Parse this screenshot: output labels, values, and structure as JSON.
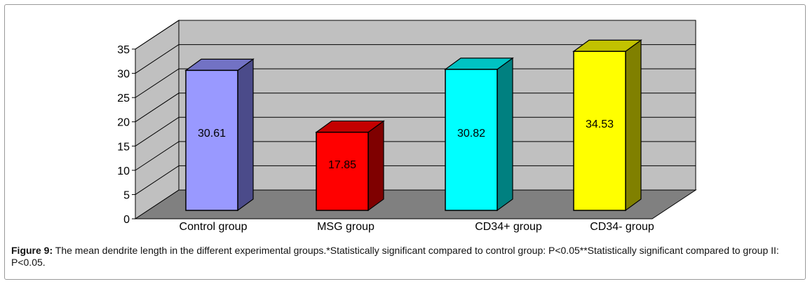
{
  "chart_data": {
    "type": "bar",
    "categories": [
      "Control group",
      "MSG group",
      "CD34+ group",
      "CD34- group"
    ],
    "values": [
      30.61,
      17.85,
      30.82,
      34.53
    ],
    "value_labels": [
      "30.61",
      "17.85",
      "30.82",
      "34.53"
    ],
    "yticks": [
      "0",
      "5",
      "10",
      "15",
      "20",
      "25",
      "30",
      "35"
    ],
    "ylim": [
      0,
      35
    ],
    "grid": true,
    "title": "",
    "xlabel": "",
    "ylabel": "",
    "colors": [
      {
        "front": "#9999ff",
        "side": "#4b4b8a",
        "top": "#7272c4"
      },
      {
        "front": "#ff0000",
        "side": "#7f0000",
        "top": "#c40000"
      },
      {
        "front": "#00ffff",
        "side": "#008080",
        "top": "#00c2c2"
      },
      {
        "front": "#ffff00",
        "side": "#808000",
        "top": "#c2c200"
      }
    ],
    "wall_color": "#c0c0c0",
    "floor_color": "#808080"
  },
  "caption": {
    "label": "Figure 9:",
    "text": " The mean dendrite length in the different experimental groups.*Statistically significant compared to control group: P<0.05**Statistically significant compared to group II: P<0.05."
  }
}
